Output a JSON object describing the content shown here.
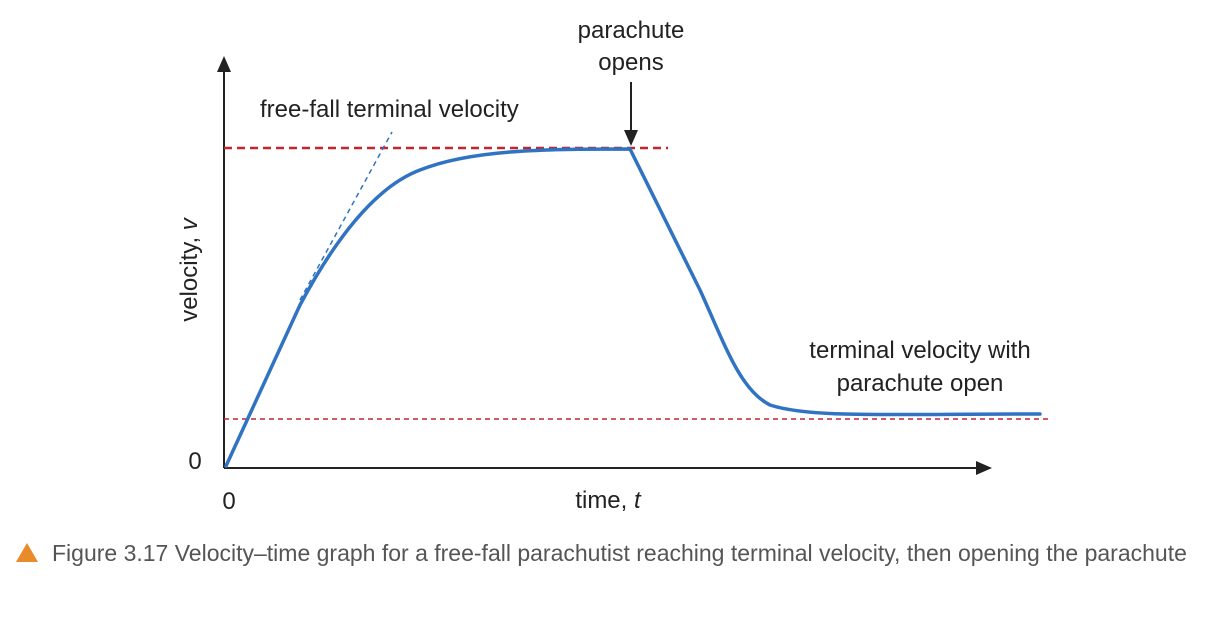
{
  "diagram": {
    "y_axis_label": "velocity, ",
    "y_axis_var": "v",
    "x_axis_label": "time, ",
    "x_axis_var": "t",
    "y_origin_label": "0",
    "x_origin_label": "0",
    "annotation_freefall": "free-fall terminal velocity",
    "annotation_parachute_line1": "parachute",
    "annotation_parachute_line2": "opens",
    "annotation_terminal_line1": "terminal velocity with",
    "annotation_terminal_line2": "parachute open"
  },
  "caption": {
    "text": "Figure 3.17 Velocity–time graph for a free-fall parachutist reaching terminal velocity, then opening the parachute"
  },
  "colors": {
    "curve": "#2f73c2",
    "terminal_line": "#c0272d",
    "axis": "#222222",
    "caption_text": "#555555",
    "caption_marker": "#e98a2b"
  }
}
